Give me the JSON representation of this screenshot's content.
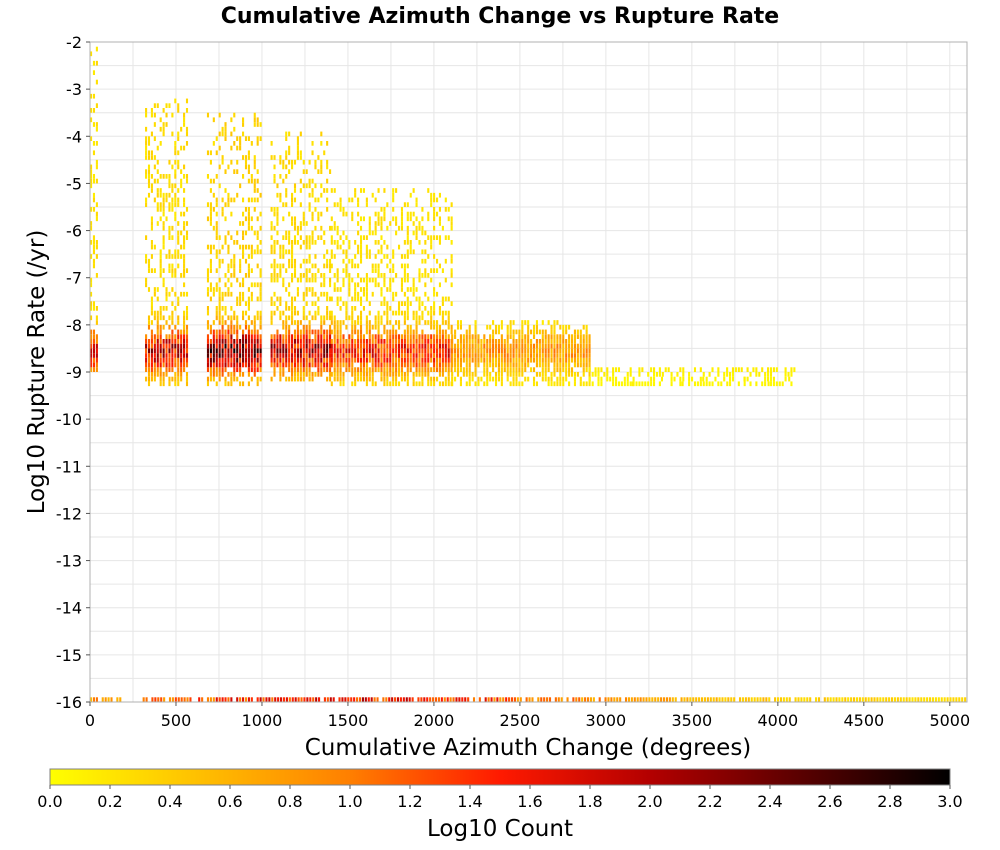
{
  "chart_data": {
    "type": "heatmap",
    "title": "Cumulative Azimuth Change vs Rupture Rate",
    "xlabel": "Cumulative Azimuth Change (degrees)",
    "ylabel": "Log10 Rupture Rate (/yr)",
    "xlim": [
      0,
      5100
    ],
    "ylim": [
      -16,
      -2
    ],
    "x_ticks": [
      "0",
      "500",
      "1000",
      "1500",
      "2000",
      "2500",
      "3000",
      "3500",
      "4000",
      "4500",
      "5000"
    ],
    "y_ticks": [
      "-2",
      "-3",
      "-4",
      "-5",
      "-6",
      "-7",
      "-8",
      "-9",
      "-10",
      "-11",
      "-12",
      "-13",
      "-14",
      "-15",
      "-16"
    ],
    "grid": true,
    "cell_width_degrees": 17,
    "cell_height_log10": 0.1,
    "value_meaning": "Log10 Count",
    "clusters": [
      {
        "x_range": [
          0,
          40
        ],
        "y_range": [
          -9.0,
          -2.1
        ],
        "peak": 1.9
      },
      {
        "x_range": [
          320,
          560
        ],
        "y_range": [
          -9.3,
          -3.3
        ],
        "peak": 2.2
      },
      {
        "x_range": [
          680,
          1000
        ],
        "y_range": [
          -9.3,
          -3.6
        ],
        "peak": 2.7
      },
      {
        "x_range": [
          1050,
          1400
        ],
        "y_range": [
          -9.2,
          -4.0
        ],
        "peak": 2.3
      },
      {
        "x_range": [
          1400,
          2100
        ],
        "y_range": [
          -9.3,
          -5.2
        ],
        "peak": 1.8
      },
      {
        "x_range": [
          2100,
          2900
        ],
        "y_range": [
          -9.3,
          -8.0
        ],
        "peak": 1.0
      },
      {
        "x_range": [
          2900,
          4100
        ],
        "y_range": [
          -9.3,
          -9.0
        ],
        "peak": 0.3
      }
    ],
    "bottom_band": {
      "log10_rate": -16,
      "x_range": [
        0,
        5100
      ],
      "peak": 1.9
    },
    "colorbar": {
      "label": "Log10 Count",
      "min": 0.0,
      "max": 3.0,
      "ticks": [
        "0.0",
        "0.2",
        "0.4",
        "0.6",
        "0.8",
        "1.0",
        "1.2",
        "1.4",
        "1.6",
        "1.8",
        "2.0",
        "2.2",
        "2.4",
        "2.6",
        "2.8",
        "3.0"
      ],
      "colors": [
        "#ffff00",
        "#ffbf00",
        "#ff7f00",
        "#ff1a00",
        "#b30000",
        "#5a0000",
        "#000000"
      ]
    }
  }
}
